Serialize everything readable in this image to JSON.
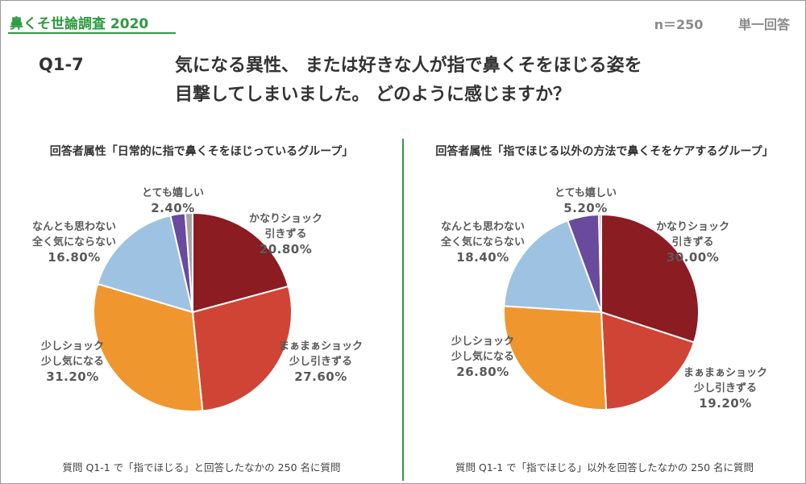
{
  "header": {
    "brand": "鼻くそ世論調査 2020",
    "sample": "n＝250",
    "answer_type": "単一回答"
  },
  "question": {
    "number": "Q1-7",
    "line1": "気になる異性、 または好きな人が指で鼻くそをほじる姿を",
    "line2": "目撃してしまいました。 どのように感じますか？"
  },
  "colors": {
    "accent": "#2e9a40",
    "slice1": "#8b1c22",
    "slice2": "#d04436",
    "slice3": "#f0962f",
    "slice4": "#9ec2e1",
    "slice5": "#6a4a9c",
    "slice6": "#a6a6a6"
  },
  "chart_data": [
    {
      "type": "pie",
      "title": "回答者属性「日常的に指で鼻くそをほじっているグループ」",
      "footnote": "質問 Q1-1 で「指でほじる」と回答したなかの 250 名に質問",
      "slices": [
        {
          "label_lines": [
            "かなりショック",
            "引きずる"
          ],
          "value": 20.8,
          "display": "20.80%"
        },
        {
          "label_lines": [
            "まぁまぁショック",
            "少し引きずる"
          ],
          "value": 27.6,
          "display": "27.60%"
        },
        {
          "label_lines": [
            "少しショック",
            "少し気になる"
          ],
          "value": 31.2,
          "display": "31.20%"
        },
        {
          "label_lines": [
            "なんとも思わない",
            "全く気にならない"
          ],
          "value": 16.8,
          "display": "16.80%"
        },
        {
          "label_lines": [
            "とても嬉しい"
          ],
          "value": 2.4,
          "display": "2.40%"
        },
        {
          "label_lines": [],
          "value": 1.2,
          "display": ""
        }
      ]
    },
    {
      "type": "pie",
      "title": "回答者属性「指でほじる以外の方法で鼻くそをケアするグループ」",
      "footnote": "質問 Q1-1 で「指でほじる」以外を回答したなかの 250 名に質問",
      "slices": [
        {
          "label_lines": [
            "かなりショック",
            "引きずる"
          ],
          "value": 30.0,
          "display": "30.00%"
        },
        {
          "label_lines": [
            "まぁまぁショック",
            "少し引きずる"
          ],
          "value": 19.2,
          "display": "19.20%"
        },
        {
          "label_lines": [
            "少しショック",
            "少し気になる"
          ],
          "value": 26.8,
          "display": "26.80%"
        },
        {
          "label_lines": [
            "なんとも思わない",
            "全く気にならない"
          ],
          "value": 18.4,
          "display": "18.40%"
        },
        {
          "label_lines": [
            "とても嬉しい"
          ],
          "value": 5.2,
          "display": "5.20%"
        },
        {
          "label_lines": [],
          "value": 0.4,
          "display": ""
        }
      ]
    }
  ]
}
